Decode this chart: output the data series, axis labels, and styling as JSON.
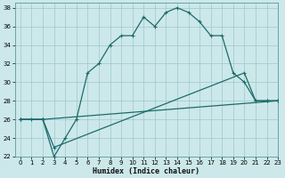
{
  "xlabel": "Humidex (Indice chaleur)",
  "bg_color": "#cce8ea",
  "grid_color": "#9dc8cc",
  "line_color": "#1e6b6b",
  "xlim": [
    -0.5,
    23
  ],
  "ylim": [
    22,
    38.5
  ],
  "xtick_labels": [
    "0",
    "1",
    "2",
    "3",
    "4",
    "5",
    "6",
    "7",
    "8",
    "9",
    "10",
    "11",
    "12",
    "13",
    "14",
    "15",
    "16",
    "17",
    "18",
    "19",
    "20",
    "21",
    "2223"
  ],
  "yticks": [
    22,
    24,
    26,
    28,
    30,
    32,
    34,
    36,
    38
  ],
  "line1_x": [
    0,
    1,
    2,
    3,
    4,
    5,
    6,
    7,
    8,
    9,
    10,
    11,
    12,
    13,
    14,
    15,
    16,
    17,
    18,
    19,
    20,
    21,
    22,
    23
  ],
  "line1_y": [
    26,
    26,
    26,
    22,
    24,
    26,
    31,
    32,
    34,
    35,
    35,
    37,
    36,
    37.5,
    38,
    37.5,
    36.5,
    35,
    35,
    31,
    30,
    28,
    28,
    28
  ],
  "line2_x": [
    0,
    2,
    23
  ],
  "line2_y": [
    26,
    26,
    28
  ],
  "line3_x": [
    0,
    2,
    3,
    20,
    21,
    22,
    23
  ],
  "line3_y": [
    26,
    26,
    23,
    31,
    28,
    28,
    28
  ]
}
